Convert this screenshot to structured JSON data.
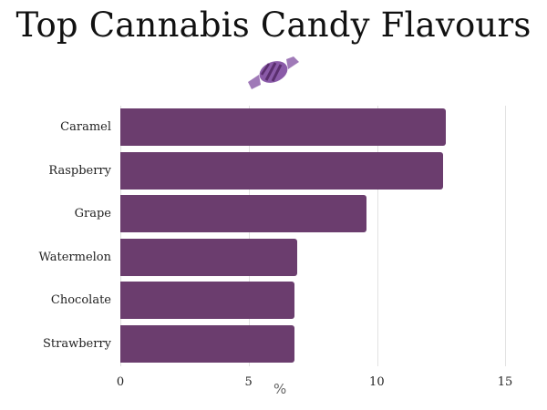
{
  "chart_data": {
    "type": "bar",
    "orientation": "horizontal",
    "title": "Top Cannabis Candy Flavours",
    "categories": [
      "Caramel",
      "Raspberry",
      "Grape",
      "Watermelon",
      "Chocolate",
      "Strawberry"
    ],
    "values": [
      12.7,
      12.6,
      9.6,
      6.9,
      6.8,
      6.8
    ],
    "xlabel": "%",
    "ylabel": "",
    "xlim": [
      0,
      15
    ],
    "xticks": [
      "0",
      "5",
      "10",
      "15"
    ],
    "grid": true,
    "legend": null,
    "bar_color": "#6b3d6e"
  },
  "decoration": {
    "icon": "candy-icon"
  }
}
